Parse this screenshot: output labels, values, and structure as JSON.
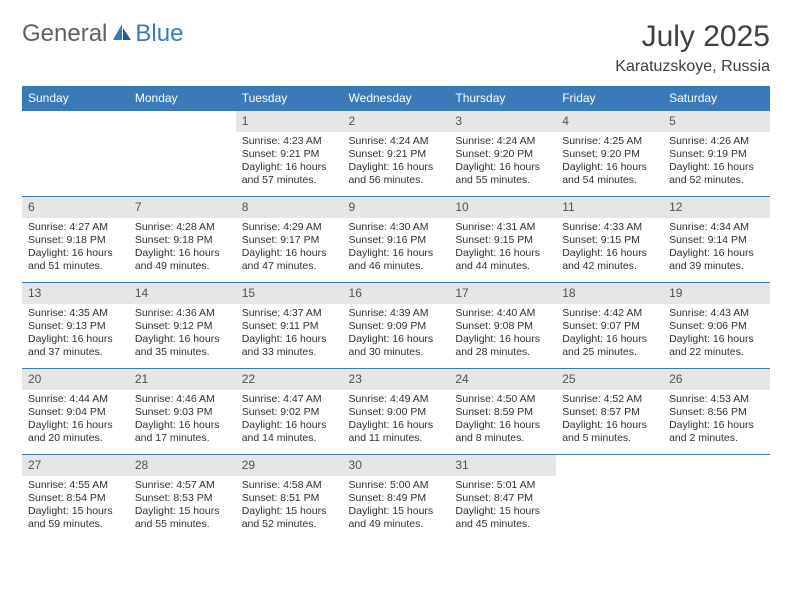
{
  "logo": {
    "part1": "General",
    "part2": "Blue"
  },
  "title": "July 2025",
  "location": "Karatuzskoye, Russia",
  "colors": {
    "header_bg": "#3a7ab8",
    "header_text": "#ffffff",
    "daynum_bg": "#e6e6e6",
    "border": "#3a7ab8",
    "text": "#303030",
    "logo_gray": "#606060",
    "logo_blue": "#3a7ab8",
    "background": "#ffffff"
  },
  "day_labels": [
    "Sunday",
    "Monday",
    "Tuesday",
    "Wednesday",
    "Thursday",
    "Friday",
    "Saturday"
  ],
  "weeks": [
    [
      null,
      null,
      {
        "n": "1",
        "sr": "Sunrise: 4:23 AM",
        "ss": "Sunset: 9:21 PM",
        "dl": "Daylight: 16 hours and 57 minutes."
      },
      {
        "n": "2",
        "sr": "Sunrise: 4:24 AM",
        "ss": "Sunset: 9:21 PM",
        "dl": "Daylight: 16 hours and 56 minutes."
      },
      {
        "n": "3",
        "sr": "Sunrise: 4:24 AM",
        "ss": "Sunset: 9:20 PM",
        "dl": "Daylight: 16 hours and 55 minutes."
      },
      {
        "n": "4",
        "sr": "Sunrise: 4:25 AM",
        "ss": "Sunset: 9:20 PM",
        "dl": "Daylight: 16 hours and 54 minutes."
      },
      {
        "n": "5",
        "sr": "Sunrise: 4:26 AM",
        "ss": "Sunset: 9:19 PM",
        "dl": "Daylight: 16 hours and 52 minutes."
      }
    ],
    [
      {
        "n": "6",
        "sr": "Sunrise: 4:27 AM",
        "ss": "Sunset: 9:18 PM",
        "dl": "Daylight: 16 hours and 51 minutes."
      },
      {
        "n": "7",
        "sr": "Sunrise: 4:28 AM",
        "ss": "Sunset: 9:18 PM",
        "dl": "Daylight: 16 hours and 49 minutes."
      },
      {
        "n": "8",
        "sr": "Sunrise: 4:29 AM",
        "ss": "Sunset: 9:17 PM",
        "dl": "Daylight: 16 hours and 47 minutes."
      },
      {
        "n": "9",
        "sr": "Sunrise: 4:30 AM",
        "ss": "Sunset: 9:16 PM",
        "dl": "Daylight: 16 hours and 46 minutes."
      },
      {
        "n": "10",
        "sr": "Sunrise: 4:31 AM",
        "ss": "Sunset: 9:15 PM",
        "dl": "Daylight: 16 hours and 44 minutes."
      },
      {
        "n": "11",
        "sr": "Sunrise: 4:33 AM",
        "ss": "Sunset: 9:15 PM",
        "dl": "Daylight: 16 hours and 42 minutes."
      },
      {
        "n": "12",
        "sr": "Sunrise: 4:34 AM",
        "ss": "Sunset: 9:14 PM",
        "dl": "Daylight: 16 hours and 39 minutes."
      }
    ],
    [
      {
        "n": "13",
        "sr": "Sunrise: 4:35 AM",
        "ss": "Sunset: 9:13 PM",
        "dl": "Daylight: 16 hours and 37 minutes."
      },
      {
        "n": "14",
        "sr": "Sunrise: 4:36 AM",
        "ss": "Sunset: 9:12 PM",
        "dl": "Daylight: 16 hours and 35 minutes."
      },
      {
        "n": "15",
        "sr": "Sunrise: 4:37 AM",
        "ss": "Sunset: 9:11 PM",
        "dl": "Daylight: 16 hours and 33 minutes."
      },
      {
        "n": "16",
        "sr": "Sunrise: 4:39 AM",
        "ss": "Sunset: 9:09 PM",
        "dl": "Daylight: 16 hours and 30 minutes."
      },
      {
        "n": "17",
        "sr": "Sunrise: 4:40 AM",
        "ss": "Sunset: 9:08 PM",
        "dl": "Daylight: 16 hours and 28 minutes."
      },
      {
        "n": "18",
        "sr": "Sunrise: 4:42 AM",
        "ss": "Sunset: 9:07 PM",
        "dl": "Daylight: 16 hours and 25 minutes."
      },
      {
        "n": "19",
        "sr": "Sunrise: 4:43 AM",
        "ss": "Sunset: 9:06 PM",
        "dl": "Daylight: 16 hours and 22 minutes."
      }
    ],
    [
      {
        "n": "20",
        "sr": "Sunrise: 4:44 AM",
        "ss": "Sunset: 9:04 PM",
        "dl": "Daylight: 16 hours and 20 minutes."
      },
      {
        "n": "21",
        "sr": "Sunrise: 4:46 AM",
        "ss": "Sunset: 9:03 PM",
        "dl": "Daylight: 16 hours and 17 minutes."
      },
      {
        "n": "22",
        "sr": "Sunrise: 4:47 AM",
        "ss": "Sunset: 9:02 PM",
        "dl": "Daylight: 16 hours and 14 minutes."
      },
      {
        "n": "23",
        "sr": "Sunrise: 4:49 AM",
        "ss": "Sunset: 9:00 PM",
        "dl": "Daylight: 16 hours and 11 minutes."
      },
      {
        "n": "24",
        "sr": "Sunrise: 4:50 AM",
        "ss": "Sunset: 8:59 PM",
        "dl": "Daylight: 16 hours and 8 minutes."
      },
      {
        "n": "25",
        "sr": "Sunrise: 4:52 AM",
        "ss": "Sunset: 8:57 PM",
        "dl": "Daylight: 16 hours and 5 minutes."
      },
      {
        "n": "26",
        "sr": "Sunrise: 4:53 AM",
        "ss": "Sunset: 8:56 PM",
        "dl": "Daylight: 16 hours and 2 minutes."
      }
    ],
    [
      {
        "n": "27",
        "sr": "Sunrise: 4:55 AM",
        "ss": "Sunset: 8:54 PM",
        "dl": "Daylight: 15 hours and 59 minutes."
      },
      {
        "n": "28",
        "sr": "Sunrise: 4:57 AM",
        "ss": "Sunset: 8:53 PM",
        "dl": "Daylight: 15 hours and 55 minutes."
      },
      {
        "n": "29",
        "sr": "Sunrise: 4:58 AM",
        "ss": "Sunset: 8:51 PM",
        "dl": "Daylight: 15 hours and 52 minutes."
      },
      {
        "n": "30",
        "sr": "Sunrise: 5:00 AM",
        "ss": "Sunset: 8:49 PM",
        "dl": "Daylight: 15 hours and 49 minutes."
      },
      {
        "n": "31",
        "sr": "Sunrise: 5:01 AM",
        "ss": "Sunset: 8:47 PM",
        "dl": "Daylight: 15 hours and 45 minutes."
      },
      null,
      null
    ]
  ]
}
